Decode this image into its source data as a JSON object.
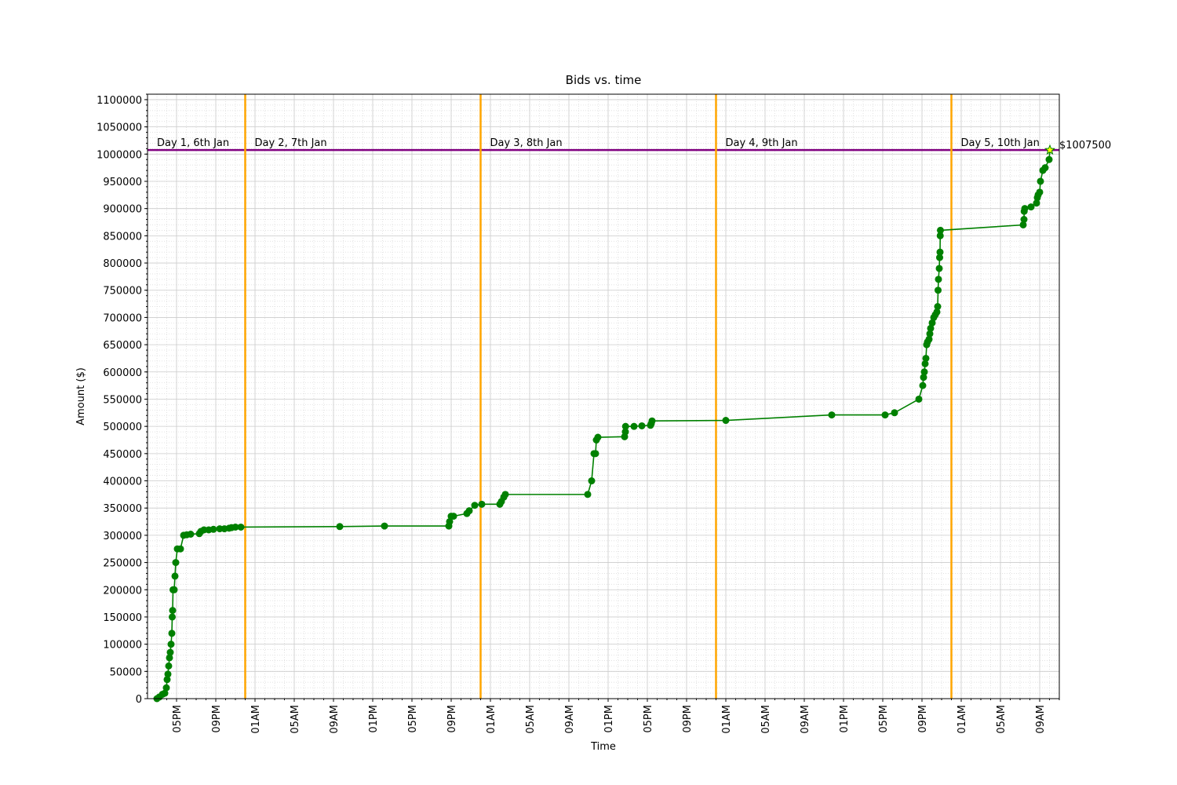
{
  "chart_data": {
    "type": "line",
    "title": "Bids vs. time",
    "x_label": "Time",
    "y_label": "Amount ($)",
    "x": [
      15.0,
      15.24,
      15.56,
      15.8,
      15.96,
      16.04,
      16.12,
      16.2,
      16.28,
      16.36,
      16.44,
      16.52,
      16.56,
      16.6,
      16.64,
      16.76,
      16.84,
      16.92,
      17.08,
      17.4,
      17.72,
      18.04,
      18.44,
      19.32,
      19.48,
      19.8,
      20.28,
      20.76,
      21.4,
      21.88,
      22.36,
      22.6,
      23.0,
      23.56,
      33.64,
      38.2,
      44.76,
      44.84,
      45.0,
      45.24,
      46.6,
      46.84,
      47.4,
      48.12,
      49.96,
      50.12,
      50.36,
      50.52,
      58.92,
      59.32,
      59.56,
      59.72,
      59.8,
      59.96,
      62.68,
      62.76,
      62.78,
      63.64,
      64.44,
      65.32,
      65.4,
      65.48,
      73.0,
      83.8,
      89.24,
      90.2,
      92.68,
      93.08,
      93.16,
      93.24,
      93.32,
      93.4,
      93.48,
      93.56,
      93.72,
      93.8,
      93.88,
      94.04,
      94.2,
      94.36,
      94.52,
      94.6,
      94.64,
      94.68,
      94.76,
      94.8,
      94.84,
      94.86,
      94.88,
      103.32,
      103.4,
      103.42,
      103.48,
      104.12,
      104.68,
      104.76,
      104.84,
      105.0,
      105.08,
      105.32,
      105.56,
      105.96,
      106.04
    ],
    "series": [
      {
        "name": "Bids",
        "color": "#008000",
        "values": [
          0,
          3000,
          8000,
          10000,
          20000,
          35000,
          45000,
          60000,
          75000,
          85000,
          100000,
          120000,
          150000,
          162000,
          200000,
          200000,
          225000,
          250000,
          275000,
          275000,
          300000,
          301000,
          302000,
          303000,
          307000,
          310000,
          310000,
          311000,
          312000,
          312000,
          313000,
          314000,
          315000,
          315000,
          316000,
          317000,
          317000,
          325000,
          335000,
          335000,
          340000,
          345000,
          355000,
          357000,
          357000,
          362000,
          370000,
          375000,
          375000,
          400000,
          450000,
          450000,
          475000,
          480000,
          481000,
          490000,
          500000,
          500000,
          501000,
          502000,
          505000,
          510000,
          511000,
          521000,
          521000,
          525000,
          550000,
          575000,
          590000,
          600000,
          615000,
          625000,
          650000,
          655000,
          660000,
          670000,
          680000,
          690000,
          700000,
          705000,
          710000,
          720000,
          750000,
          770000,
          790000,
          810000,
          820000,
          850000,
          860000,
          870000,
          880000,
          895000,
          900000,
          903000,
          910000,
          920000,
          925000,
          930000,
          950000,
          970000,
          975000,
          990000,
          1007500
        ]
      }
    ],
    "highlight_last": true,
    "highlight_color": "#ffff00",
    "xlim": [
      14.04,
      107
    ],
    "ylim": [
      0,
      1110000
    ],
    "xticks": [
      {
        "value": 17,
        "label": "05PM"
      },
      {
        "value": 21,
        "label": "09PM"
      },
      {
        "value": 25,
        "label": "01AM"
      },
      {
        "value": 29,
        "label": "05AM"
      },
      {
        "value": 33,
        "label": "09AM"
      },
      {
        "value": 37,
        "label": "01PM"
      },
      {
        "value": 41,
        "label": "05PM"
      },
      {
        "value": 45,
        "label": "09PM"
      },
      {
        "value": 49,
        "label": "01AM"
      },
      {
        "value": 53,
        "label": "05AM"
      },
      {
        "value": 57,
        "label": "09AM"
      },
      {
        "value": 61,
        "label": "01PM"
      },
      {
        "value": 65,
        "label": "05PM"
      },
      {
        "value": 69,
        "label": "09PM"
      },
      {
        "value": 73,
        "label": "01AM"
      },
      {
        "value": 77,
        "label": "05AM"
      },
      {
        "value": 81,
        "label": "09AM"
      },
      {
        "value": 85,
        "label": "01PM"
      },
      {
        "value": 89,
        "label": "05PM"
      },
      {
        "value": 93,
        "label": "09PM"
      },
      {
        "value": 97,
        "label": "01AM"
      },
      {
        "value": 101,
        "label": "05AM"
      },
      {
        "value": 105,
        "label": "09AM"
      }
    ],
    "yticks": [
      0,
      50000,
      100000,
      150000,
      200000,
      250000,
      300000,
      350000,
      400000,
      450000,
      500000,
      550000,
      600000,
      650000,
      700000,
      750000,
      800000,
      850000,
      900000,
      950000,
      1000000,
      1050000,
      1100000
    ],
    "grid": true,
    "day_boundaries": [
      24,
      48,
      72,
      96
    ],
    "day_color": "#ffa500",
    "day_labels": [
      "Day 1, 6th Jan",
      "Day 2, 7th Jan",
      "Day 3, 8th Jan",
      "Day 4, 9th Jan",
      "Day 5, 10th Jan"
    ],
    "target": {
      "value": 1007500,
      "label": "$1007500"
    },
    "target_color": "#800080"
  }
}
